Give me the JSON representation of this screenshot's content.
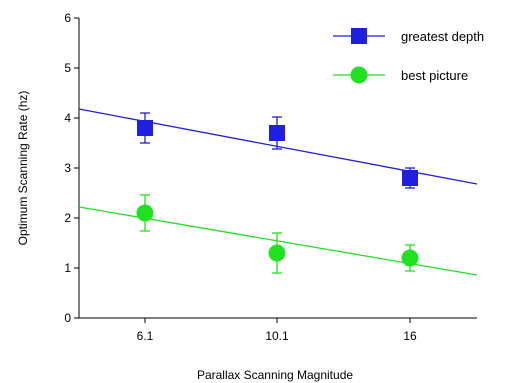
{
  "chart_data": {
    "type": "scatter",
    "xlabel": "Parallax Scanning Magnitude",
    "ylabel": "Optimum Scanning Rate (hz)",
    "x_categories": [
      "6.1",
      "10.1",
      "16"
    ],
    "ylim": [
      0,
      6
    ],
    "yticks": [
      0,
      1,
      2,
      3,
      4,
      5,
      6
    ],
    "grid": false,
    "legend_position": "top-right",
    "series": [
      {
        "name": "greatest depth",
        "color": "#1f1fe0",
        "marker": "square",
        "points": [
          {
            "x": "6.1",
            "y": 3.8,
            "err": 0.3
          },
          {
            "x": "10.1",
            "y": 3.7,
            "err": 0.32
          },
          {
            "x": "16",
            "y": 2.8,
            "err": 0.2
          }
        ],
        "fit_line": {
          "y_start": 4.18,
          "y_end": 2.68
        }
      },
      {
        "name": "best picture",
        "color": "#22e022",
        "marker": "circle",
        "points": [
          {
            "x": "6.1",
            "y": 2.1,
            "err": 0.36
          },
          {
            "x": "10.1",
            "y": 1.3,
            "err": 0.4
          },
          {
            "x": "16",
            "y": 1.2,
            "err": 0.26
          }
        ],
        "fit_line": {
          "y_start": 2.22,
          "y_end": 0.86
        }
      }
    ]
  }
}
